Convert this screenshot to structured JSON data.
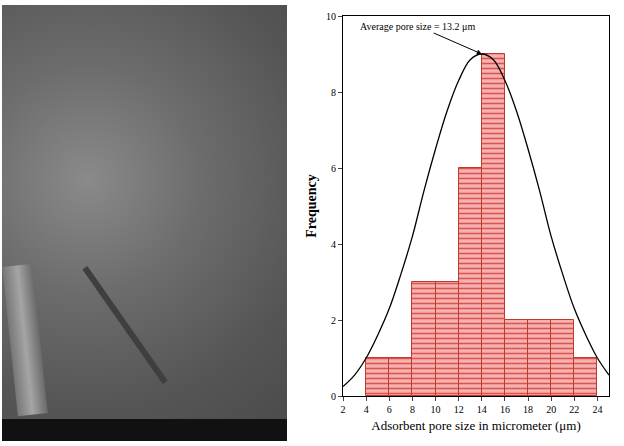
{
  "chart_data": {
    "type": "histogram",
    "xlabel": "Adsorbent pore size in micrometer (μm)",
    "ylabel": "Frequency",
    "bins": [
      4,
      6,
      8,
      10,
      12,
      14,
      16,
      18,
      20,
      22,
      24
    ],
    "counts": [
      1,
      1,
      3,
      3,
      6,
      9,
      2,
      2,
      2,
      1
    ],
    "color": "#f6b0b0",
    "series": [
      {
        "type": "line",
        "color": "#000000",
        "x": [
          2,
          3,
          4,
          5,
          6,
          7,
          8,
          9,
          10,
          11,
          12,
          13,
          14,
          15,
          16,
          17,
          18,
          19,
          20,
          21,
          22,
          23,
          24,
          25
        ],
        "values": [
          0.25,
          0.55,
          1.0,
          1.6,
          2.3,
          3.2,
          4.2,
          5.4,
          6.5,
          7.5,
          8.3,
          8.85,
          9.0,
          8.85,
          8.3,
          7.5,
          6.5,
          5.4,
          4.2,
          3.2,
          2.3,
          1.6,
          1.0,
          0.55
        ]
      }
    ],
    "annotations": [
      {
        "text": "Average pore size = 13.2 μm",
        "x": 14,
        "y": 9
      }
    ],
    "xlim": [
      2,
      25
    ],
    "ylim": [
      0,
      10
    ],
    "xticks": [
      2,
      4,
      6,
      8,
      10,
      12,
      14,
      16,
      18,
      20,
      22,
      24
    ],
    "yticks": [
      0,
      2,
      4,
      6,
      8,
      10
    ]
  }
}
